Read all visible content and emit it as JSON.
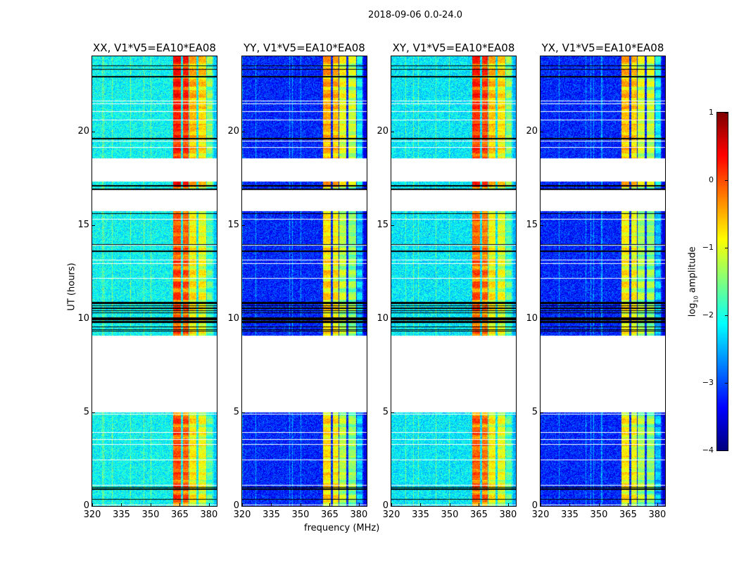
{
  "chart_data": {
    "type": "heatmap",
    "title": "2018-09-06 0.0-24.0",
    "xlabel": "frequency (MHz)",
    "ylabel": "UT (hours)",
    "xlim": [
      320,
      384
    ],
    "ylim": [
      0,
      24
    ],
    "xticks": [
      "320",
      "335",
      "350",
      "365",
      "380"
    ],
    "xtick_values": [
      320,
      335,
      350,
      365,
      380
    ],
    "yticks": [
      "0",
      "5",
      "10",
      "15",
      "20"
    ],
    "ytick_values": [
      0,
      5,
      10,
      15,
      20
    ],
    "colorbar": {
      "label_main": "log",
      "label_sub": "10",
      "label_rest": " amplitude",
      "range": [
        -4,
        1
      ],
      "colormap": "jet",
      "ticks": [
        "1",
        "0",
        "−1",
        "−2",
        "−3",
        "−4"
      ],
      "tick_values": [
        1,
        0,
        -1,
        -2,
        -3,
        -4
      ]
    },
    "flagged_time_ranges": [
      [
        5.0,
        9.1
      ],
      [
        15.75,
        16.85
      ],
      [
        17.3,
        18.55
      ]
    ],
    "black_row_hours": [
      0.35,
      0.9,
      1.0,
      13.6,
      13.95,
      15.6,
      16.05,
      16.9,
      17.1,
      19.6,
      22.9,
      23.3,
      23.5
    ],
    "dense_black_range": [
      9.1,
      10.9
    ],
    "panels": [
      {
        "title": "XX, V1*V5=EA10*EA08",
        "background": -2.1,
        "bands": [
          {
            "fmin": 361.5,
            "fmax": 365.5,
            "amp": 0.1
          },
          {
            "fmin": 366.5,
            "fmax": 369.5,
            "amp": 0.0
          },
          {
            "fmin": 370,
            "fmax": 373.5,
            "amp": -0.7
          },
          {
            "fmin": 374.5,
            "fmax": 378.5,
            "amp": -0.85
          },
          {
            "fmin": 379,
            "fmax": 382,
            "amp": -1.6
          }
        ]
      },
      {
        "title": "YY, V1*V5=EA10*EA08",
        "background": -3.2,
        "bands": [
          {
            "fmin": 361.5,
            "fmax": 365.5,
            "amp": -0.6
          },
          {
            "fmin": 366.5,
            "fmax": 369.5,
            "amp": -0.7
          },
          {
            "fmin": 370,
            "fmax": 373.5,
            "amp": -1.1
          },
          {
            "fmin": 374.5,
            "fmax": 378.5,
            "amp": -1.3
          },
          {
            "fmin": 379,
            "fmax": 382,
            "amp": -2.3
          }
        ]
      },
      {
        "title": "XY, V1*V5=EA10*EA08",
        "background": -2.2,
        "bands": [
          {
            "fmin": 361.5,
            "fmax": 365.5,
            "amp": 0.0
          },
          {
            "fmin": 366.5,
            "fmax": 369.5,
            "amp": -0.1
          },
          {
            "fmin": 370,
            "fmax": 373.5,
            "amp": -0.75
          },
          {
            "fmin": 374.5,
            "fmax": 378.5,
            "amp": -0.9
          },
          {
            "fmin": 379,
            "fmax": 382,
            "amp": -1.6
          }
        ]
      },
      {
        "title": "YX, V1*V5=EA10*EA08",
        "background": -3.2,
        "bands": [
          {
            "fmin": 361.5,
            "fmax": 365.5,
            "amp": -0.7
          },
          {
            "fmin": 366.5,
            "fmax": 369.5,
            "amp": -0.8
          },
          {
            "fmin": 370,
            "fmax": 373.5,
            "amp": -1.2
          },
          {
            "fmin": 374.5,
            "fmax": 378.5,
            "amp": -1.3
          },
          {
            "fmin": 379,
            "fmax": 382,
            "amp": -2.3
          }
        ]
      }
    ]
  }
}
